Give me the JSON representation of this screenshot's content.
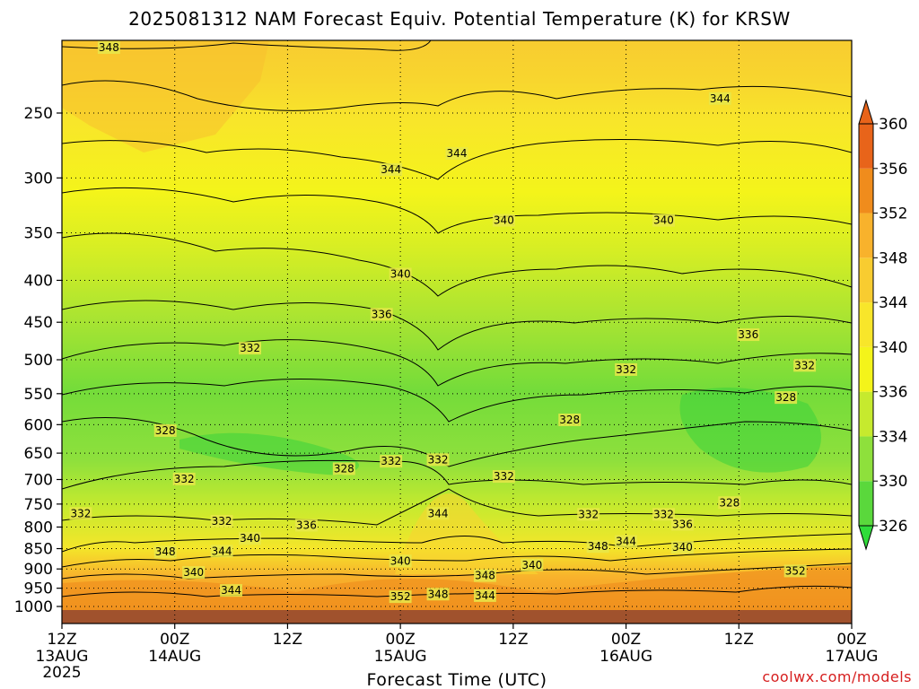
{
  "chart_data": {
    "type": "heatmap",
    "title": "2025081312 NAM Forecast Equiv. Potential Temperature (K) for KRSW",
    "xlabel": "Forecast Time (UTC)",
    "ylabel": "",
    "y_scale": "log-pressure",
    "y_reversed": true,
    "ylim": [
      1000,
      200
    ],
    "y_ticks": [
      250,
      300,
      350,
      400,
      450,
      500,
      550,
      600,
      650,
      700,
      750,
      800,
      850,
      900,
      950,
      1000
    ],
    "x_ticks": [
      {
        "hours": 0,
        "label": "12Z",
        "sublabel": "13AUG",
        "year": "2025"
      },
      {
        "hours": 12,
        "label": "00Z",
        "sublabel": "14AUG"
      },
      {
        "hours": 24,
        "label": "12Z",
        "sublabel": ""
      },
      {
        "hours": 36,
        "label": "00Z",
        "sublabel": "15AUG"
      },
      {
        "hours": 48,
        "label": "12Z",
        "sublabel": ""
      },
      {
        "hours": 60,
        "label": "00Z",
        "sublabel": "16AUG"
      },
      {
        "hours": 72,
        "label": "12Z",
        "sublabel": ""
      },
      {
        "hours": 84,
        "label": "00Z",
        "sublabel": "17AUG"
      }
    ],
    "xlim_hours": [
      0,
      84
    ],
    "grid": true,
    "colorbar": {
      "position": "right",
      "levels": [
        326,
        330,
        334,
        336,
        340,
        344,
        348,
        352,
        356,
        360
      ],
      "colors": [
        "#2fdc3a",
        "#5ad83c",
        "#8ee03c",
        "#c6ea2e",
        "#f4f41a",
        "#f8e62a",
        "#f8cc30",
        "#f8b22c",
        "#f08c1c",
        "#e8641a"
      ]
    },
    "contour_labels": [
      {
        "hours": 5,
        "p": 208,
        "value": "348"
      },
      {
        "hours": 70,
        "p": 240,
        "value": "344"
      },
      {
        "hours": 42,
        "p": 280,
        "value": "344"
      },
      {
        "hours": 35,
        "p": 293,
        "value": "344"
      },
      {
        "hours": 47,
        "p": 338,
        "value": "340"
      },
      {
        "hours": 64,
        "p": 338,
        "value": "340"
      },
      {
        "hours": 36,
        "p": 393,
        "value": "340"
      },
      {
        "hours": 34,
        "p": 440,
        "value": "336"
      },
      {
        "hours": 73,
        "p": 466,
        "value": "336"
      },
      {
        "hours": 20,
        "p": 484,
        "value": "332"
      },
      {
        "hours": 60,
        "p": 514,
        "value": "332"
      },
      {
        "hours": 79,
        "p": 508,
        "value": "332"
      },
      {
        "hours": 54,
        "p": 592,
        "value": "328"
      },
      {
        "hours": 77,
        "p": 556,
        "value": "328"
      },
      {
        "hours": 11,
        "p": 610,
        "value": "328"
      },
      {
        "hours": 40,
        "p": 662,
        "value": "332"
      },
      {
        "hours": 35,
        "p": 665,
        "value": "332"
      },
      {
        "hours": 30,
        "p": 679,
        "value": "328"
      },
      {
        "hours": 13,
        "p": 699,
        "value": "332"
      },
      {
        "hours": 47,
        "p": 694,
        "value": "332"
      },
      {
        "hours": 71,
        "p": 747,
        "value": "328"
      },
      {
        "hours": 2,
        "p": 770,
        "value": "332"
      },
      {
        "hours": 17,
        "p": 787,
        "value": "332"
      },
      {
        "hours": 26,
        "p": 796,
        "value": "336"
      },
      {
        "hours": 40,
        "p": 770,
        "value": "344"
      },
      {
        "hours": 56,
        "p": 772,
        "value": "332"
      },
      {
        "hours": 64,
        "p": 772,
        "value": "332"
      },
      {
        "hours": 66,
        "p": 794,
        "value": "336"
      },
      {
        "hours": 20,
        "p": 826,
        "value": "340"
      },
      {
        "hours": 11,
        "p": 858,
        "value": "348"
      },
      {
        "hours": 17,
        "p": 856,
        "value": "344"
      },
      {
        "hours": 57,
        "p": 845,
        "value": "348"
      },
      {
        "hours": 60,
        "p": 833,
        "value": "344"
      },
      {
        "hours": 66,
        "p": 847,
        "value": "340"
      },
      {
        "hours": 14,
        "p": 909,
        "value": "340"
      },
      {
        "hours": 36,
        "p": 880,
        "value": "340"
      },
      {
        "hours": 50,
        "p": 890,
        "value": "340"
      },
      {
        "hours": 78,
        "p": 905,
        "value": "352"
      },
      {
        "hours": 45,
        "p": 917,
        "value": "348"
      },
      {
        "hours": 18,
        "p": 956,
        "value": "344"
      },
      {
        "hours": 36,
        "p": 973,
        "value": "352"
      },
      {
        "hours": 40,
        "p": 966,
        "value": "348"
      },
      {
        "hours": 45,
        "p": 970,
        "value": "344"
      }
    ]
  },
  "credit": "coolwx.com/models"
}
